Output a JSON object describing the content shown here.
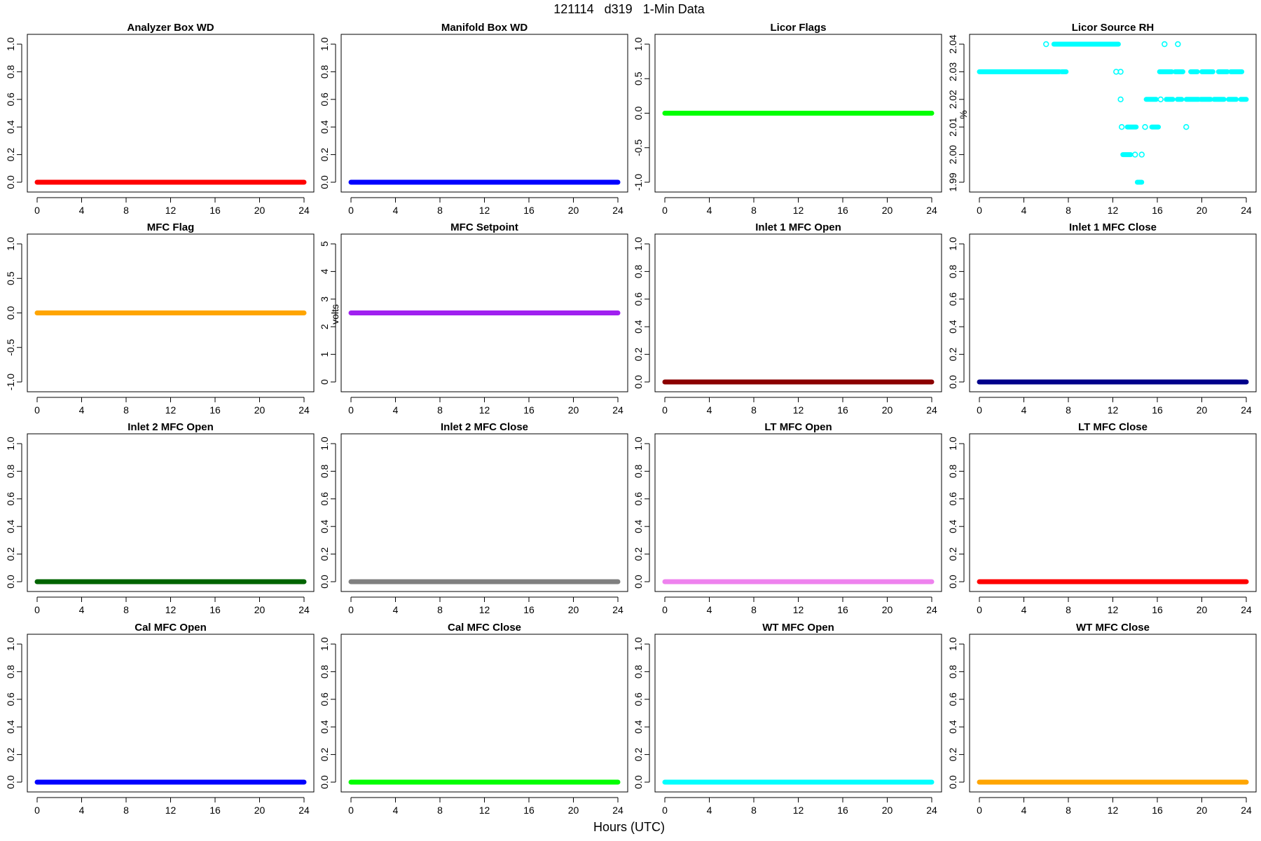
{
  "figure": {
    "title": "121114   d319   1-Min Data",
    "xlabel": "Hours (UTC)"
  },
  "chart_data": [
    {
      "type": "scatter",
      "title": "Analyzer Box WD",
      "ylabel": "",
      "color": "#ff0000",
      "xlim": [
        0,
        24
      ],
      "ylim": [
        0,
        1
      ],
      "xticks": [
        0,
        4,
        8,
        12,
        16,
        20,
        24
      ],
      "yticks": [
        "0.0",
        "0.2",
        "0.4",
        "0.6",
        "0.8",
        "1.0"
      ],
      "series": [
        {
          "x_range": [
            0,
            24
          ],
          "y": 0
        }
      ]
    },
    {
      "type": "scatter",
      "title": "Manifold Box WD",
      "ylabel": "",
      "color": "#0000ff",
      "xlim": [
        0,
        24
      ],
      "ylim": [
        0,
        1
      ],
      "xticks": [
        0,
        4,
        8,
        12,
        16,
        20,
        24
      ],
      "yticks": [
        "0.0",
        "0.2",
        "0.4",
        "0.6",
        "0.8",
        "1.0"
      ],
      "series": [
        {
          "x_range": [
            0,
            24
          ],
          "y": 0
        }
      ]
    },
    {
      "type": "scatter",
      "title": "Licor Flags",
      "ylabel": "",
      "color": "#00ff00",
      "xlim": [
        0,
        24
      ],
      "ylim": [
        -1,
        1
      ],
      "xticks": [
        0,
        4,
        8,
        12,
        16,
        20,
        24
      ],
      "yticks": [
        "-1.0",
        "-0.5",
        "0.0",
        "0.5",
        "1.0"
      ],
      "series": [
        {
          "x_range": [
            0,
            24
          ],
          "y": 0
        }
      ]
    },
    {
      "type": "scatter",
      "title": "Licor Source RH",
      "ylabel": "%",
      "color": "#00ffff",
      "xlim": [
        0,
        24
      ],
      "ylim": [
        1.99,
        2.04
      ],
      "xticks": [
        0,
        4,
        8,
        12,
        16,
        20,
        24
      ],
      "yticks": [
        "1.99",
        "2.00",
        "2.01",
        "2.02",
        "2.03",
        "2.04"
      ],
      "series": [
        {
          "x_range": [
            0,
            7.2
          ],
          "y": 2.03
        },
        {
          "x_range": [
            7.4,
            7.8
          ],
          "y": 2.03
        },
        {
          "x_": [
            6.0
          ],
          "y": 2.04
        },
        {
          "x_range": [
            6.7,
            12.5
          ],
          "y": 2.04
        },
        {
          "x_range": [
            16.5,
            16.8
          ],
          "y": 2.04
        },
        {
          "x_range": [
            17.7,
            18.0
          ],
          "y": 2.04
        },
        {
          "x_": [
            12.3,
            12.7
          ],
          "y": 2.03
        },
        {
          "x_range": [
            16.2,
            17.3
          ],
          "y": 2.03
        },
        {
          "x_range": [
            17.6,
            18.3
          ],
          "y": 2.03
        },
        {
          "x_range": [
            19.0,
            19.6
          ],
          "y": 2.03
        },
        {
          "x_range": [
            20.0,
            21.0
          ],
          "y": 2.03
        },
        {
          "x_range": [
            21.5,
            22.3
          ],
          "y": 2.03
        },
        {
          "x_range": [
            22.6,
            23.6
          ],
          "y": 2.03
        },
        {
          "x_": [
            12.7
          ],
          "y": 2.02
        },
        {
          "x_range": [
            15.0,
            15.9
          ],
          "y": 2.02
        },
        {
          "x_": [
            16.3
          ],
          "y": 2.02
        },
        {
          "x_range": [
            16.8,
            17.4
          ],
          "y": 2.02
        },
        {
          "x_range": [
            17.8,
            18.2
          ],
          "y": 2.02
        },
        {
          "x_range": [
            18.6,
            19.7
          ],
          "y": 2.02
        },
        {
          "x_range": [
            19.9,
            20.8
          ],
          "y": 2.02
        },
        {
          "x_range": [
            21.1,
            22.0
          ],
          "y": 2.02
        },
        {
          "x_range": [
            22.4,
            23.1
          ],
          "y": 2.02
        },
        {
          "x_range": [
            23.5,
            24.0
          ],
          "y": 2.02
        },
        {
          "x_": [
            12.8
          ],
          "y": 2.01
        },
        {
          "x_range": [
            13.3,
            14.1
          ],
          "y": 2.01
        },
        {
          "x_": [
            14.9
          ],
          "y": 2.01
        },
        {
          "x_range": [
            15.5,
            16.1
          ],
          "y": 2.01
        },
        {
          "x_": [
            18.6
          ],
          "y": 2.01
        },
        {
          "x_range": [
            12.9,
            13.6
          ],
          "y": 2.0
        },
        {
          "x_": [
            14.0
          ],
          "y": 2.0
        },
        {
          "x_": [
            14.6
          ],
          "y": 2.0
        },
        {
          "x_range": [
            14.2,
            14.6
          ],
          "y": 1.99
        }
      ]
    },
    {
      "type": "scatter",
      "title": "MFC Flag",
      "ylabel": "",
      "color": "#ffa500",
      "xlim": [
        0,
        24
      ],
      "ylim": [
        -1,
        1
      ],
      "xticks": [
        0,
        4,
        8,
        12,
        16,
        20,
        24
      ],
      "yticks": [
        "-1.0",
        "-0.5",
        "0.0",
        "0.5",
        "1.0"
      ],
      "series": [
        {
          "x_range": [
            0,
            24
          ],
          "y": 0
        }
      ]
    },
    {
      "type": "scatter",
      "title": "MFC Setpoint",
      "ylabel": "volts",
      "color": "#a020f0",
      "xlim": [
        0,
        24
      ],
      "ylim": [
        0,
        5
      ],
      "xticks": [
        0,
        4,
        8,
        12,
        16,
        20,
        24
      ],
      "yticks": [
        "0",
        "1",
        "2",
        "3",
        "4",
        "5"
      ],
      "series": [
        {
          "x_range": [
            0,
            24
          ],
          "y": 2.5
        }
      ]
    },
    {
      "type": "scatter",
      "title": "Inlet 1 MFC Open",
      "ylabel": "",
      "color": "#8b0000",
      "xlim": [
        0,
        24
      ],
      "ylim": [
        0,
        1
      ],
      "xticks": [
        0,
        4,
        8,
        12,
        16,
        20,
        24
      ],
      "yticks": [
        "0.0",
        "0.2",
        "0.4",
        "0.6",
        "0.8",
        "1.0"
      ],
      "series": [
        {
          "x_range": [
            0,
            24
          ],
          "y": 0
        }
      ]
    },
    {
      "type": "scatter",
      "title": "Inlet 1 MFC Close",
      "ylabel": "",
      "color": "#00008b",
      "xlim": [
        0,
        24
      ],
      "ylim": [
        0,
        1
      ],
      "xticks": [
        0,
        4,
        8,
        12,
        16,
        20,
        24
      ],
      "yticks": [
        "0.0",
        "0.2",
        "0.4",
        "0.6",
        "0.8",
        "1.0"
      ],
      "series": [
        {
          "x_range": [
            0,
            24
          ],
          "y": 0
        }
      ]
    },
    {
      "type": "scatter",
      "title": "Inlet 2 MFC Open",
      "ylabel": "",
      "color": "#006400",
      "xlim": [
        0,
        24
      ],
      "ylim": [
        0,
        1
      ],
      "xticks": [
        0,
        4,
        8,
        12,
        16,
        20,
        24
      ],
      "yticks": [
        "0.0",
        "0.2",
        "0.4",
        "0.6",
        "0.8",
        "1.0"
      ],
      "series": [
        {
          "x_range": [
            0,
            24
          ],
          "y": 0
        }
      ]
    },
    {
      "type": "scatter",
      "title": "Inlet 2 MFC Close",
      "ylabel": "",
      "color": "#808080",
      "xlim": [
        0,
        24
      ],
      "ylim": [
        0,
        1
      ],
      "xticks": [
        0,
        4,
        8,
        12,
        16,
        20,
        24
      ],
      "yticks": [
        "0.0",
        "0.2",
        "0.4",
        "0.6",
        "0.8",
        "1.0"
      ],
      "series": [
        {
          "x_range": [
            0,
            24
          ],
          "y": 0
        }
      ]
    },
    {
      "type": "scatter",
      "title": "LT MFC Open",
      "ylabel": "",
      "color": "#ee82ee",
      "xlim": [
        0,
        24
      ],
      "ylim": [
        0,
        1
      ],
      "xticks": [
        0,
        4,
        8,
        12,
        16,
        20,
        24
      ],
      "yticks": [
        "0.0",
        "0.2",
        "0.4",
        "0.6",
        "0.8",
        "1.0"
      ],
      "series": [
        {
          "x_range": [
            0,
            24
          ],
          "y": 0
        }
      ]
    },
    {
      "type": "scatter",
      "title": "LT MFC Close",
      "ylabel": "",
      "color": "#ff0000",
      "xlim": [
        0,
        24
      ],
      "ylim": [
        0,
        1
      ],
      "xticks": [
        0,
        4,
        8,
        12,
        16,
        20,
        24
      ],
      "yticks": [
        "0.0",
        "0.2",
        "0.4",
        "0.6",
        "0.8",
        "1.0"
      ],
      "series": [
        {
          "x_range": [
            0,
            24
          ],
          "y": 0
        }
      ]
    },
    {
      "type": "scatter",
      "title": "Cal MFC Open",
      "ylabel": "",
      "color": "#0000ff",
      "xlim": [
        0,
        24
      ],
      "ylim": [
        0,
        1
      ],
      "xticks": [
        0,
        4,
        8,
        12,
        16,
        20,
        24
      ],
      "yticks": [
        "0.0",
        "0.2",
        "0.4",
        "0.6",
        "0.8",
        "1.0"
      ],
      "series": [
        {
          "x_range": [
            0,
            24
          ],
          "y": 0
        }
      ]
    },
    {
      "type": "scatter",
      "title": "Cal MFC Close",
      "ylabel": "",
      "color": "#00ff00",
      "xlim": [
        0,
        24
      ],
      "ylim": [
        0,
        1
      ],
      "xticks": [
        0,
        4,
        8,
        12,
        16,
        20,
        24
      ],
      "yticks": [
        "0.0",
        "0.2",
        "0.4",
        "0.6",
        "0.8",
        "1.0"
      ],
      "series": [
        {
          "x_range": [
            0,
            24
          ],
          "y": 0
        }
      ]
    },
    {
      "type": "scatter",
      "title": "WT MFC Open",
      "ylabel": "",
      "color": "#00ffff",
      "xlim": [
        0,
        24
      ],
      "ylim": [
        0,
        1
      ],
      "xticks": [
        0,
        4,
        8,
        12,
        16,
        20,
        24
      ],
      "yticks": [
        "0.0",
        "0.2",
        "0.4",
        "0.6",
        "0.8",
        "1.0"
      ],
      "series": [
        {
          "x_range": [
            0,
            24
          ],
          "y": 0
        }
      ]
    },
    {
      "type": "scatter",
      "title": "WT MFC Close",
      "ylabel": "",
      "color": "#ffa500",
      "xlim": [
        0,
        24
      ],
      "ylim": [
        0,
        1
      ],
      "xticks": [
        0,
        4,
        8,
        12,
        16,
        20,
        24
      ],
      "yticks": [
        "0.0",
        "0.2",
        "0.4",
        "0.6",
        "0.8",
        "1.0"
      ],
      "series": [
        {
          "x_range": [
            0,
            24
          ],
          "y": 0
        }
      ]
    }
  ]
}
